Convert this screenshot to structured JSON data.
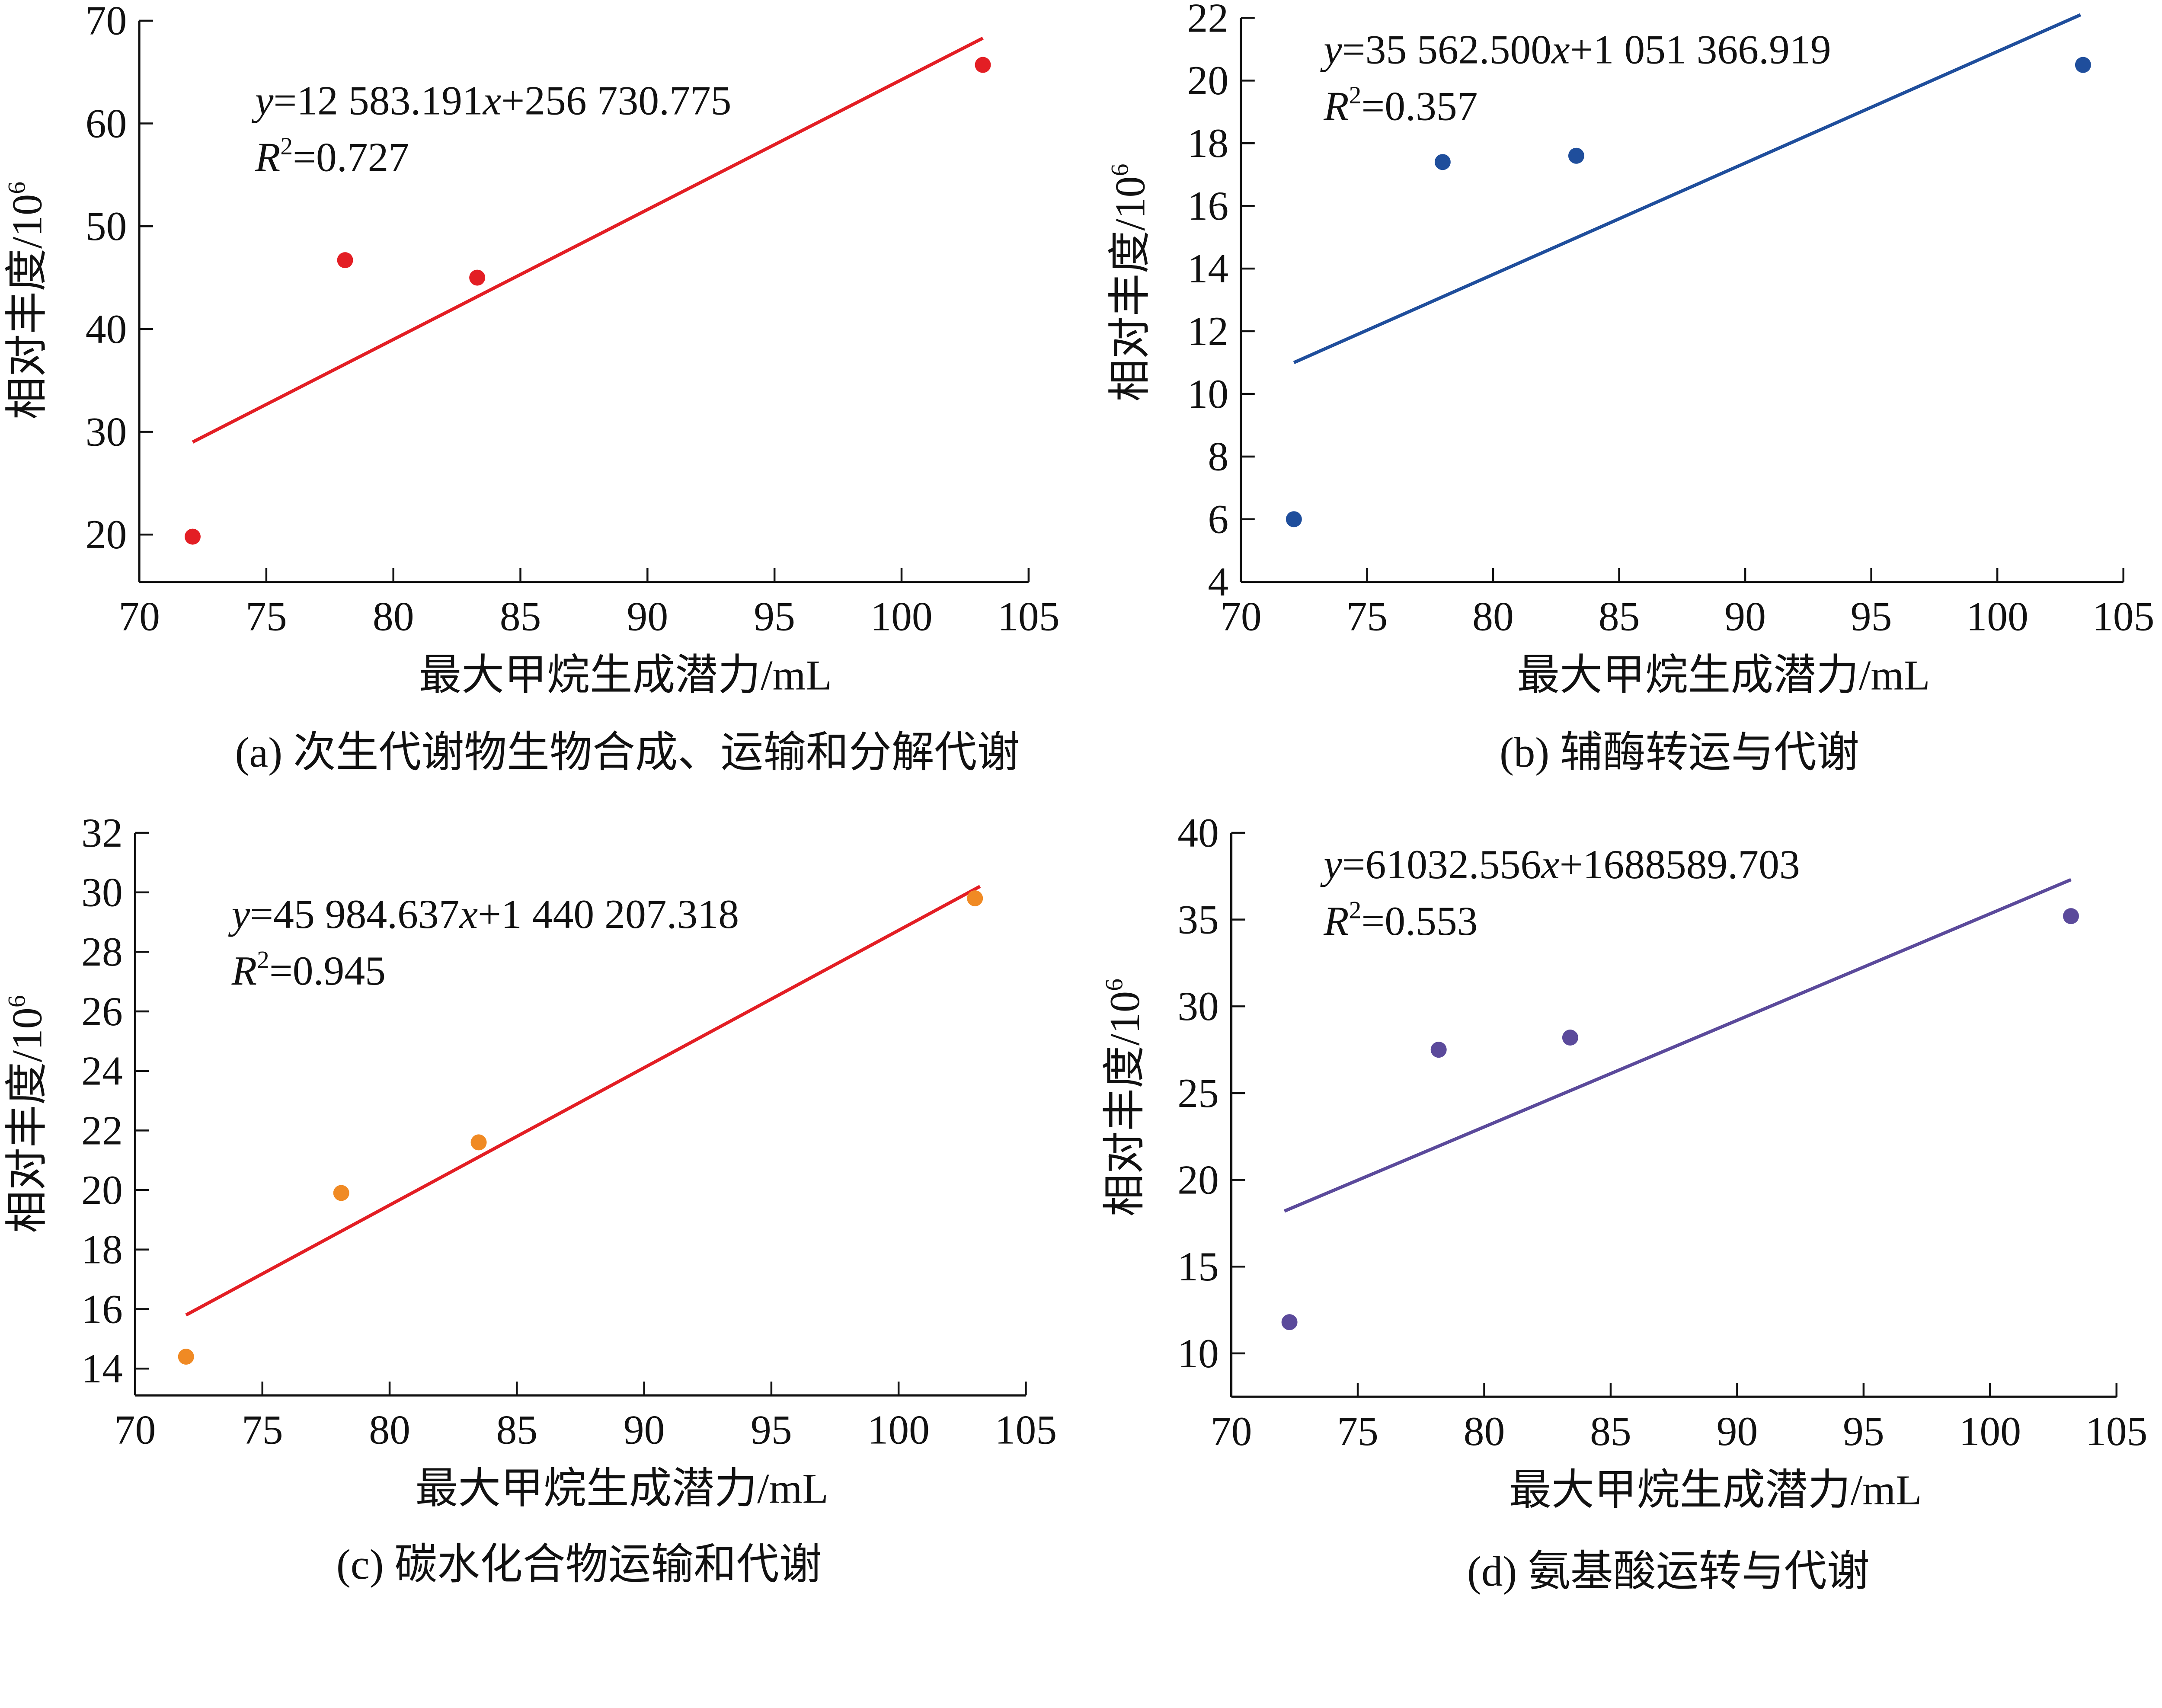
{
  "chart_data": [
    {
      "type": "scatter",
      "panel": "a",
      "caption": "(a)  次生代谢物生物合成、运输和分解代谢",
      "xlabel": "最大甲烷生成潜力/mL",
      "ylabel": "相对丰度/10",
      "ylabel_sup": "6",
      "xlim": [
        70,
        105
      ],
      "ylim": [
        15.4,
        70
      ],
      "xticks": [
        70,
        75,
        80,
        85,
        90,
        95,
        100,
        105
      ],
      "yticks": [
        20,
        30,
        40,
        50,
        60,
        70
      ],
      "color": "#e31e24",
      "line_color": "#e31e24",
      "points": [
        {
          "x": 72.1,
          "y": 19.8
        },
        {
          "x": 78.1,
          "y": 46.7
        },
        {
          "x": 83.3,
          "y": 45.0
        },
        {
          "x": 103.2,
          "y": 65.7
        }
      ],
      "fit": {
        "x": [
          72.1,
          103.2
        ],
        "y": [
          29.0,
          68.3
        ]
      },
      "equation": {
        "y": "y",
        "rest_1": "=12 583.191",
        "x": "x",
        "rest_2": "+256 730.775",
        "r": "R",
        "r_sup": "2",
        "r_val": "=0.727"
      }
    },
    {
      "type": "scatter",
      "panel": "b",
      "caption": "(b)  辅酶转运与代谢",
      "xlabel": "最大甲烷生成潜力/mL",
      "ylabel": "相对丰度/10",
      "ylabel_sup": "6",
      "xlim": [
        70,
        105
      ],
      "ylim": [
        4,
        22
      ],
      "xticks": [
        70,
        75,
        80,
        85,
        90,
        95,
        100,
        105
      ],
      "yticks": [
        4,
        6,
        8,
        10,
        12,
        14,
        16,
        18,
        20,
        22
      ],
      "color": "#1f4e9c",
      "line_color": "#1f4e9c",
      "points": [
        {
          "x": 72.1,
          "y": 6.0
        },
        {
          "x": 78.0,
          "y": 17.4
        },
        {
          "x": 83.3,
          "y": 17.6
        },
        {
          "x": 103.4,
          "y": 20.5
        }
      ],
      "fit": {
        "x": [
          72.1,
          103.3
        ],
        "y": [
          11.0,
          22.1
        ]
      },
      "equation": {
        "y": "y",
        "rest_1": "=35 562.500",
        "x": "x",
        "rest_2": "+1 051 366.919",
        "r": "R",
        "r_sup": "2",
        "r_val": "=0.357"
      }
    },
    {
      "type": "scatter",
      "panel": "c",
      "caption": "(c)  碳水化合物运输和代谢",
      "xlabel": "最大甲烷生成潜力/mL",
      "ylabel": "相对丰度/10",
      "ylabel_sup": "6",
      "xlim": [
        70,
        105
      ],
      "ylim": [
        13.1,
        32
      ],
      "xticks": [
        70,
        75,
        80,
        85,
        90,
        95,
        100,
        105
      ],
      "yticks": [
        14,
        16,
        18,
        20,
        22,
        24,
        26,
        28,
        30,
        32
      ],
      "color": "#f08a24",
      "line_color": "#e31e24",
      "points": [
        {
          "x": 72.0,
          "y": 14.4
        },
        {
          "x": 78.1,
          "y": 19.9
        },
        {
          "x": 83.5,
          "y": 21.6
        },
        {
          "x": 103.0,
          "y": 29.8
        }
      ],
      "fit": {
        "x": [
          72.0,
          103.2
        ],
        "y": [
          15.8,
          30.2
        ]
      },
      "equation": {
        "y": "y",
        "rest_1": "=45 984.637",
        "x": "x",
        "rest_2": "+1 440 207.318",
        "r": "R",
        "r_sup": "2",
        "r_val": "=0.945"
      }
    },
    {
      "type": "scatter",
      "panel": "d",
      "caption": "(d) 氨基酸运转与代谢",
      "xlabel": "最大甲烷生成潜力/mL",
      "ylabel": "相对丰度/10",
      "ylabel_sup": "6",
      "xlim": [
        70,
        105
      ],
      "ylim": [
        7.5,
        40
      ],
      "xticks": [
        70,
        75,
        80,
        85,
        90,
        95,
        100,
        105
      ],
      "yticks": [
        10,
        15,
        20,
        25,
        30,
        35,
        40
      ],
      "color": "#5b4a9b",
      "line_color": "#5b4a9b",
      "points": [
        {
          "x": 72.3,
          "y": 11.8
        },
        {
          "x": 78.2,
          "y": 27.5
        },
        {
          "x": 83.4,
          "y": 28.2
        },
        {
          "x": 103.2,
          "y": 35.2
        }
      ],
      "fit": {
        "x": [
          72.1,
          103.2
        ],
        "y": [
          18.2,
          37.3
        ]
      },
      "equation": {
        "y": "y",
        "rest_1": "=61032.556",
        "x": "x",
        "rest_2": "+1688589.703",
        "r": "R",
        "r_sup": "2",
        "r_val": "=0.553"
      }
    }
  ]
}
